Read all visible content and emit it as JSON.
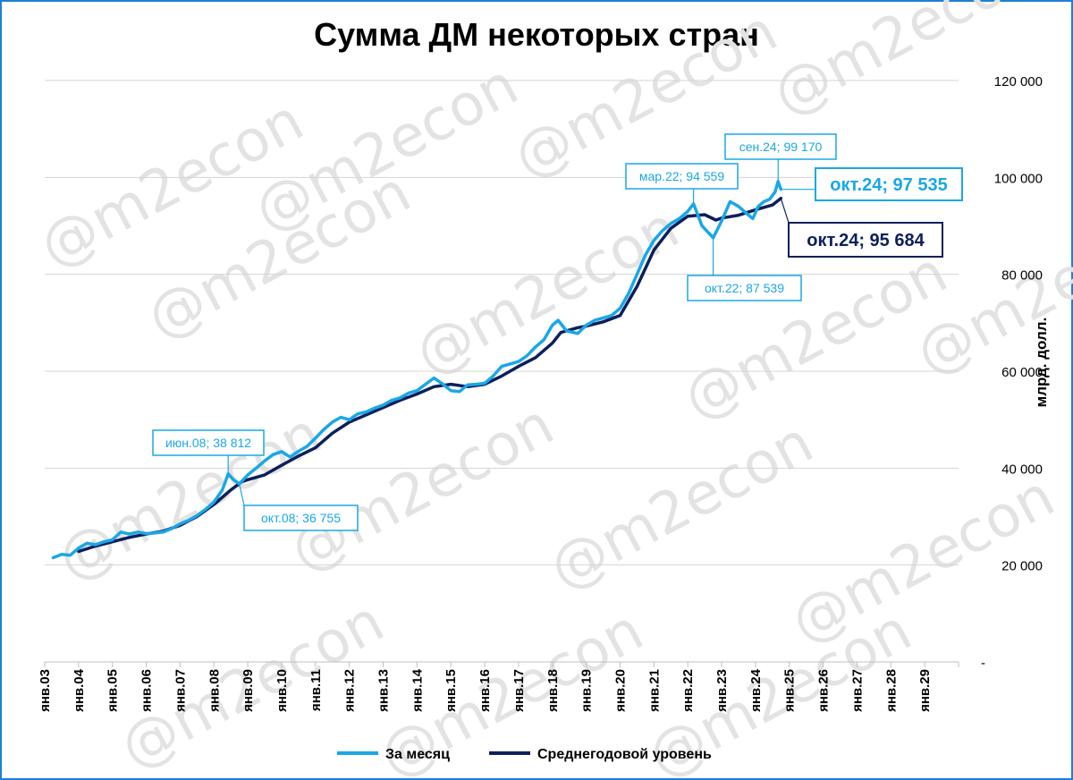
{
  "chart_data": {
    "type": "line",
    "title": "Сумма ДМ некоторых стран",
    "ylabel": "млрд. долл.",
    "ylim": [
      0,
      120000
    ],
    "yticks": [
      {
        "value": 0,
        "label": "-"
      },
      {
        "value": 20000,
        "label": "20 000"
      },
      {
        "value": 40000,
        "label": "40 000"
      },
      {
        "value": 60000,
        "label": "60 000"
      },
      {
        "value": 80000,
        "label": "80 000"
      },
      {
        "value": 100000,
        "label": "100 000"
      },
      {
        "value": 120000,
        "label": "120 000"
      }
    ],
    "x_range": [
      2003.0,
      2030.0
    ],
    "xticks": [
      "янв.03",
      "янв.04",
      "янв.05",
      "янв.06",
      "янв.07",
      "янв.08",
      "янв.09",
      "янв.10",
      "янв.11",
      "янв.12",
      "янв.13",
      "янв.14",
      "янв.15",
      "янв.16",
      "янв.17",
      "янв.18",
      "янв.19",
      "янв.20",
      "янв.21",
      "янв.22",
      "янв.23",
      "янв.24",
      "янв.25",
      "янв.26",
      "янв.27",
      "янв.28",
      "янв.29"
    ],
    "grid": true,
    "legend_position": "bottom",
    "series": [
      {
        "name": "За месяц",
        "color": "#1aa7e6",
        "points": [
          [
            2003.25,
            21500
          ],
          [
            2003.5,
            22200
          ],
          [
            2003.75,
            22000
          ],
          [
            2004.0,
            23500
          ],
          [
            2004.25,
            24500
          ],
          [
            2004.5,
            24200
          ],
          [
            2004.75,
            24800
          ],
          [
            2005.0,
            25200
          ],
          [
            2005.25,
            26800
          ],
          [
            2005.5,
            26400
          ],
          [
            2005.75,
            26800
          ],
          [
            2006.0,
            26500
          ],
          [
            2006.25,
            26600
          ],
          [
            2006.5,
            26800
          ],
          [
            2006.75,
            27500
          ],
          [
            2007.0,
            28500
          ],
          [
            2007.25,
            29200
          ],
          [
            2007.5,
            30200
          ],
          [
            2007.75,
            31500
          ],
          [
            2008.0,
            33000
          ],
          [
            2008.25,
            35500
          ],
          [
            2008.42,
            38812
          ],
          [
            2008.58,
            37600
          ],
          [
            2008.75,
            36755
          ],
          [
            2009.0,
            38600
          ],
          [
            2009.25,
            40000
          ],
          [
            2009.5,
            41500
          ],
          [
            2009.75,
            42800
          ],
          [
            2010.0,
            43400
          ],
          [
            2010.25,
            42300
          ],
          [
            2010.5,
            43500
          ],
          [
            2010.75,
            44500
          ],
          [
            2011.0,
            46200
          ],
          [
            2011.25,
            48000
          ],
          [
            2011.5,
            49500
          ],
          [
            2011.75,
            50500
          ],
          [
            2012.0,
            50000
          ],
          [
            2012.25,
            51200
          ],
          [
            2012.5,
            51600
          ],
          [
            2012.75,
            52400
          ],
          [
            2013.0,
            53000
          ],
          [
            2013.25,
            54000
          ],
          [
            2013.5,
            54500
          ],
          [
            2013.75,
            55500
          ],
          [
            2014.0,
            56000
          ],
          [
            2014.25,
            57300
          ],
          [
            2014.5,
            58600
          ],
          [
            2014.75,
            57400
          ],
          [
            2015.0,
            56000
          ],
          [
            2015.25,
            55800
          ],
          [
            2015.5,
            57200
          ],
          [
            2015.75,
            57300
          ],
          [
            2016.0,
            57500
          ],
          [
            2016.25,
            59000
          ],
          [
            2016.5,
            61000
          ],
          [
            2016.75,
            61500
          ],
          [
            2017.0,
            62000
          ],
          [
            2017.25,
            63200
          ],
          [
            2017.5,
            65000
          ],
          [
            2017.75,
            66500
          ],
          [
            2018.0,
            69500
          ],
          [
            2018.17,
            70500
          ],
          [
            2018.42,
            68300
          ],
          [
            2018.75,
            67800
          ],
          [
            2019.0,
            69500
          ],
          [
            2019.25,
            70500
          ],
          [
            2019.5,
            71000
          ],
          [
            2019.75,
            71500
          ],
          [
            2020.0,
            73000
          ],
          [
            2020.25,
            76000
          ],
          [
            2020.5,
            80000
          ],
          [
            2020.75,
            84000
          ],
          [
            2021.0,
            87000
          ],
          [
            2021.25,
            89000
          ],
          [
            2021.5,
            90500
          ],
          [
            2021.75,
            91500
          ],
          [
            2022.0,
            93000
          ],
          [
            2022.17,
            94559
          ],
          [
            2022.42,
            90000
          ],
          [
            2022.75,
            87539
          ],
          [
            2023.0,
            91000
          ],
          [
            2023.25,
            95000
          ],
          [
            2023.5,
            94000
          ],
          [
            2023.75,
            92500
          ],
          [
            2023.92,
            91500
          ],
          [
            2024.08,
            94000
          ],
          [
            2024.25,
            95000
          ],
          [
            2024.42,
            95500
          ],
          [
            2024.58,
            97000
          ],
          [
            2024.67,
            99170
          ],
          [
            2024.75,
            97535
          ]
        ]
      },
      {
        "name": "Среднегодовой уровень",
        "color": "#0d1f5c",
        "points": [
          [
            2004.0,
            22800
          ],
          [
            2004.5,
            23900
          ],
          [
            2005.0,
            24800
          ],
          [
            2005.5,
            25700
          ],
          [
            2006.0,
            26400
          ],
          [
            2006.5,
            27000
          ],
          [
            2007.0,
            28200
          ],
          [
            2007.5,
            30000
          ],
          [
            2008.0,
            32500
          ],
          [
            2008.5,
            35500
          ],
          [
            2008.83,
            37200
          ],
          [
            2009.0,
            37600
          ],
          [
            2009.5,
            38600
          ],
          [
            2010.0,
            40600
          ],
          [
            2010.5,
            42500
          ],
          [
            2011.0,
            44200
          ],
          [
            2011.5,
            47200
          ],
          [
            2012.0,
            49500
          ],
          [
            2012.5,
            51000
          ],
          [
            2013.0,
            52500
          ],
          [
            2013.5,
            54000
          ],
          [
            2014.0,
            55300
          ],
          [
            2014.5,
            56800
          ],
          [
            2015.0,
            57300
          ],
          [
            2015.5,
            56800
          ],
          [
            2016.0,
            57300
          ],
          [
            2016.5,
            59000
          ],
          [
            2017.0,
            61000
          ],
          [
            2017.5,
            62800
          ],
          [
            2018.0,
            65800
          ],
          [
            2018.25,
            68000
          ],
          [
            2018.75,
            69000
          ],
          [
            2019.0,
            69300
          ],
          [
            2019.5,
            70200
          ],
          [
            2020.0,
            71500
          ],
          [
            2020.5,
            77500
          ],
          [
            2021.0,
            85000
          ],
          [
            2021.5,
            89500
          ],
          [
            2022.0,
            92000
          ],
          [
            2022.5,
            92300
          ],
          [
            2022.83,
            91200
          ],
          [
            2023.0,
            91600
          ],
          [
            2023.5,
            92200
          ],
          [
            2024.0,
            93300
          ],
          [
            2024.5,
            94300
          ],
          [
            2024.75,
            95684
          ]
        ]
      }
    ],
    "annotations": [
      {
        "text": "июн.08;  38 812",
        "x": 2008.42,
        "y": 38812,
        "series": 0
      },
      {
        "text": "окт.08;  36 755",
        "x": 2008.75,
        "y": 36755,
        "series": 0
      },
      {
        "text": "мар.22;  94 559",
        "x": 2022.17,
        "y": 94559,
        "series": 0
      },
      {
        "text": "окт.22;  87 539",
        "x": 2022.75,
        "y": 87539,
        "series": 0
      },
      {
        "text": "сен.24;  99 170",
        "x": 2024.67,
        "y": 99170,
        "series": 0
      },
      {
        "text": "окт.24;  97 535",
        "x": 2024.75,
        "y": 97535,
        "series": 0
      },
      {
        "text": "окт.24;  95 684",
        "x": 2024.75,
        "y": 95684,
        "series": 1
      }
    ],
    "watermark": "@m2econ"
  }
}
